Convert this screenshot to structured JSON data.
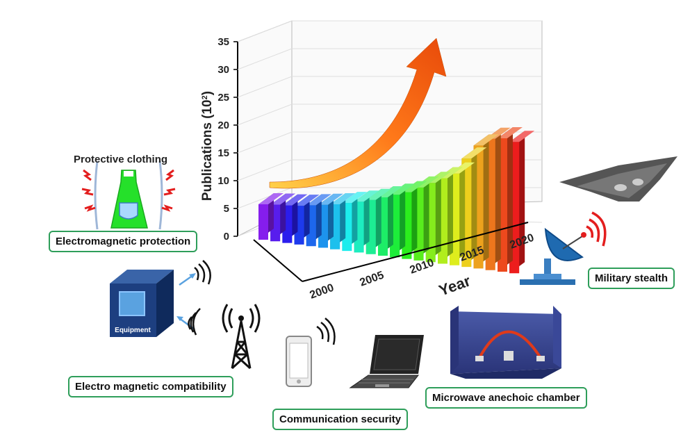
{
  "chart_data": {
    "type": "bar",
    "style": "3d",
    "x": [
      2000,
      2001,
      2002,
      2003,
      2004,
      2005,
      2006,
      2007,
      2008,
      2009,
      2010,
      2011,
      2012,
      2013,
      2014,
      2015,
      2016,
      2017,
      2018,
      2019,
      2020,
      2021
    ],
    "values": [
      8.5,
      8.8,
      9.0,
      9.3,
      9.8,
      10.3,
      10.8,
      11.5,
      12.2,
      13.0,
      14.0,
      15.0,
      16.0,
      17.5,
      19.0,
      20.5,
      22.0,
      26.0,
      29.5,
      31.5,
      32.0,
      31.5
    ],
    "ylabel": "Publications (10",
    "ylabel_sup": "2",
    "ylabel_close": ")",
    "xlabel": "Year",
    "ylim": [
      0,
      35
    ],
    "yticks": [
      "0",
      "5",
      "10",
      "15",
      "20",
      "25",
      "30",
      "35"
    ],
    "xticks": [
      "2000",
      "2005",
      "2010",
      "2015",
      "2020"
    ],
    "colors": "rainbow purple-to-red",
    "grid": true
  },
  "applications": {
    "protective_title": "Protective clothing",
    "em_protection": "Electromagnetic protection",
    "equipment": "Equipment",
    "em_compat": "Electro magnetic compatibility",
    "comm_security": "Communication security",
    "anechoic": "Microwave anechoic chamber",
    "stealth": "Military stealth"
  },
  "colors": {
    "label_border": "#2e9e5a",
    "arrow": "#f06a10"
  }
}
